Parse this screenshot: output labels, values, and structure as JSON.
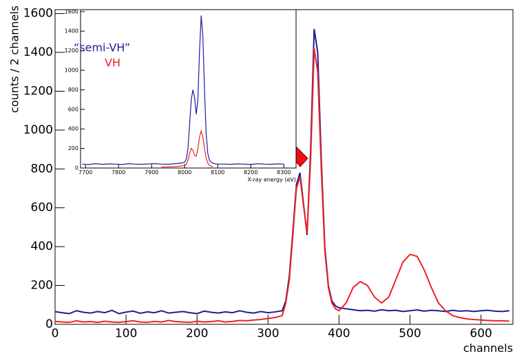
{
  "chart_data": [
    {
      "type": "line",
      "xlabel": "channels",
      "ylabel": "counts / 2 channels",
      "x": [
        0,
        10,
        20,
        30,
        40,
        50,
        60,
        70,
        80,
        90,
        100,
        110,
        120,
        130,
        140,
        150,
        160,
        170,
        180,
        190,
        200,
        210,
        220,
        230,
        240,
        250,
        260,
        270,
        280,
        290,
        300,
        310,
        320,
        325,
        330,
        335,
        340,
        345,
        350,
        355,
        360,
        365,
        370,
        375,
        380,
        385,
        390,
        395,
        400,
        410,
        420,
        430,
        440,
        450,
        460,
        470,
        480,
        490,
        500,
        510,
        520,
        530,
        540,
        550,
        560,
        570,
        580,
        590,
        600,
        610,
        620,
        630,
        640
      ],
      "series": [
        {
          "color": "#1c1c9c",
          "values": [
            65,
            60,
            55,
            70,
            62,
            58,
            66,
            60,
            72,
            55,
            63,
            68,
            57,
            64,
            60,
            70,
            58,
            62,
            66,
            60,
            55,
            68,
            62,
            58,
            64,
            60,
            70,
            62,
            58,
            66,
            60,
            64,
            70,
            120,
            250,
            480,
            720,
            780,
            620,
            460,
            900,
            1520,
            1400,
            850,
            400,
            200,
            120,
            95,
            85,
            80,
            75,
            70,
            72,
            68,
            75,
            70,
            72,
            66,
            70,
            74,
            68,
            72,
            70,
            66,
            72,
            68,
            70,
            66,
            70,
            72,
            68,
            66,
            70
          ]
        },
        {
          "color": "#f02020",
          "values": [
            15,
            12,
            10,
            18,
            12,
            14,
            10,
            16,
            12,
            10,
            14,
            18,
            12,
            10,
            15,
            12,
            20,
            14,
            12,
            10,
            16,
            12,
            14,
            18,
            12,
            15,
            20,
            18,
            22,
            25,
            30,
            35,
            45,
            110,
            230,
            460,
            700,
            760,
            610,
            470,
            850,
            1420,
            1300,
            800,
            380,
            190,
            110,
            80,
            70,
            110,
            190,
            220,
            200,
            140,
            110,
            140,
            230,
            320,
            360,
            350,
            280,
            190,
            110,
            70,
            45,
            35,
            28,
            25,
            22,
            20,
            18,
            18,
            16
          ]
        }
      ],
      "xlim": [
        0,
        645
      ],
      "ylim": [
        0,
        1620
      ],
      "xticks": [
        0,
        100,
        200,
        300,
        400,
        500,
        600
      ],
      "yticks": [
        0,
        200,
        400,
        600,
        800,
        1000,
        1200,
        1400,
        1600
      ]
    },
    {
      "type": "line",
      "xlabel": "X-ray energy (eV)",
      "x": [
        7690,
        7710,
        7730,
        7750,
        7770,
        7790,
        7810,
        7830,
        7850,
        7870,
        7890,
        7910,
        7930,
        7950,
        7970,
        7990,
        8000,
        8005,
        8010,
        8015,
        8020,
        8025,
        8030,
        8035,
        8040,
        8045,
        8050,
        8055,
        8060,
        8065,
        8070,
        8075,
        8080,
        8085,
        8090,
        8095,
        8100,
        8120,
        8140,
        8160,
        8180,
        8200,
        8220,
        8240,
        8260,
        8280,
        8300
      ],
      "series": [
        {
          "name": "“semi-VH”",
          "color": "#1c1c9c",
          "values": [
            40,
            35,
            45,
            38,
            42,
            40,
            36,
            44,
            40,
            38,
            42,
            45,
            40,
            38,
            44,
            50,
            60,
            90,
            200,
            450,
            700,
            800,
            720,
            550,
            700,
            1200,
            1560,
            1350,
            800,
            350,
            150,
            80,
            60,
            50,
            45,
            42,
            40,
            40,
            38,
            42,
            40,
            36,
            44,
            40,
            38,
            42,
            40
          ]
        },
        {
          "name": "VH",
          "color": "#f02020",
          "values": [
            null,
            null,
            null,
            null,
            null,
            null,
            null,
            null,
            null,
            null,
            null,
            null,
            10,
            12,
            15,
            20,
            25,
            40,
            80,
            150,
            200,
            180,
            130,
            120,
            200,
            320,
            380,
            320,
            200,
            100,
            50,
            30,
            20,
            10,
            null,
            null,
            null,
            null,
            null,
            null,
            null,
            null,
            null,
            null,
            null,
            null,
            null
          ]
        }
      ],
      "xlim": [
        7685,
        8337
      ],
      "ylim": [
        0,
        1620
      ],
      "xticks": [
        7700,
        7800,
        7900,
        8000,
        8100,
        8200,
        8300
      ],
      "yticks": [
        0,
        200,
        400,
        600,
        800,
        1000,
        1200,
        1400,
        1600
      ]
    }
  ]
}
